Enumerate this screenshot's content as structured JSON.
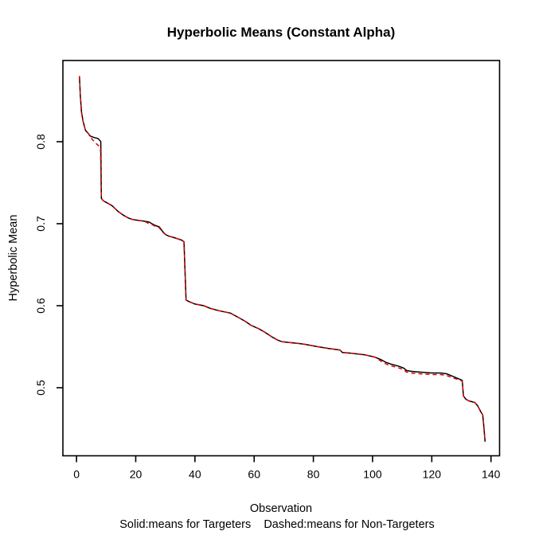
{
  "chart_data": {
    "type": "line",
    "title": "Hyperbolic Means (Constant Alpha)",
    "xlabel": "Observation",
    "ylabel": "Hyperbolic Mean",
    "caption": "Solid:means for Targeters    Dashed:means for Non-Targeters",
    "xlim": [
      -4.6,
      142.9
    ],
    "ylim": [
      0.417,
      0.899
    ],
    "x_ticks": [
      0,
      20,
      40,
      60,
      80,
      100,
      120,
      140
    ],
    "y_ticks": [
      "0.5",
      "0.6",
      "0.7",
      "0.8"
    ],
    "y_tick_values": [
      0.5,
      0.6,
      0.7,
      0.8
    ],
    "grid": false,
    "legend_position": "bottom-caption",
    "colors": {
      "solid_line": "#000000",
      "dashed_line": "#dd0000",
      "axis": "#000000",
      "background": "#ffffff"
    },
    "series": [
      {
        "name": "Targeters",
        "style": "solid",
        "color": "#000000",
        "points": [
          [
            1,
            0.88
          ],
          [
            1.3,
            0.856
          ],
          [
            1.7,
            0.836
          ],
          [
            2.2,
            0.825
          ],
          [
            3,
            0.814
          ],
          [
            4,
            0.81
          ],
          [
            4.6,
            0.807
          ],
          [
            6,
            0.805
          ],
          [
            7.2,
            0.804
          ],
          [
            8,
            0.801
          ],
          [
            8.2,
            0.8
          ],
          [
            8.4,
            0.731
          ],
          [
            9,
            0.728
          ],
          [
            10.5,
            0.725
          ],
          [
            12,
            0.722
          ],
          [
            14,
            0.715
          ],
          [
            16,
            0.71
          ],
          [
            17.5,
            0.707
          ],
          [
            19,
            0.705
          ],
          [
            21,
            0.704
          ],
          [
            23,
            0.703
          ],
          [
            24.5,
            0.702
          ],
          [
            25.5,
            0.7
          ],
          [
            26.5,
            0.698
          ],
          [
            28,
            0.696
          ],
          [
            29,
            0.691
          ],
          [
            30,
            0.687
          ],
          [
            31,
            0.685
          ],
          [
            33,
            0.683
          ],
          [
            35.5,
            0.68
          ],
          [
            36.3,
            0.678
          ],
          [
            37,
            0.607
          ],
          [
            38,
            0.605
          ],
          [
            40,
            0.602
          ],
          [
            43,
            0.6
          ],
          [
            45,
            0.597
          ],
          [
            48,
            0.594
          ],
          [
            52,
            0.591
          ],
          [
            55,
            0.585
          ],
          [
            57,
            0.581
          ],
          [
            59,
            0.576
          ],
          [
            61.5,
            0.572
          ],
          [
            63.5,
            0.568
          ],
          [
            66,
            0.562
          ],
          [
            68,
            0.558
          ],
          [
            69.5,
            0.556
          ],
          [
            72,
            0.555
          ],
          [
            75,
            0.554
          ],
          [
            77,
            0.553
          ],
          [
            81.5,
            0.55
          ],
          [
            85,
            0.548
          ],
          [
            87,
            0.547
          ],
          [
            89,
            0.546
          ],
          [
            89.8,
            0.543
          ],
          [
            93,
            0.542
          ],
          [
            97.5,
            0.54
          ],
          [
            100,
            0.538
          ],
          [
            101,
            0.537
          ],
          [
            103,
            0.534
          ],
          [
            104.5,
            0.531
          ],
          [
            106,
            0.529
          ],
          [
            109,
            0.526
          ],
          [
            110.5,
            0.524
          ],
          [
            111.5,
            0.521
          ],
          [
            113,
            0.52
          ],
          [
            116,
            0.519
          ],
          [
            120,
            0.518
          ],
          [
            123,
            0.518
          ],
          [
            125,
            0.517
          ],
          [
            127,
            0.514
          ],
          [
            129,
            0.511
          ],
          [
            130.3,
            0.509
          ],
          [
            130.7,
            0.49
          ],
          [
            131.5,
            0.486
          ],
          [
            132.5,
            0.484
          ],
          [
            134.5,
            0.482
          ],
          [
            135.5,
            0.478
          ],
          [
            136.5,
            0.471
          ],
          [
            137.2,
            0.467
          ],
          [
            137.6,
            0.452
          ],
          [
            138,
            0.434
          ]
        ]
      },
      {
        "name": "Non-Targeters",
        "style": "dashed",
        "color": "#dd0000",
        "points": [
          [
            1,
            0.88
          ],
          [
            1.3,
            0.856
          ],
          [
            1.7,
            0.836
          ],
          [
            2.2,
            0.825
          ],
          [
            3,
            0.814
          ],
          [
            4,
            0.81
          ],
          [
            4.6,
            0.806
          ],
          [
            5.5,
            0.802
          ],
          [
            6.5,
            0.798
          ],
          [
            7.5,
            0.795
          ],
          [
            8.1,
            0.791
          ],
          [
            8.4,
            0.731
          ],
          [
            9,
            0.728
          ],
          [
            10.5,
            0.725
          ],
          [
            12,
            0.722
          ],
          [
            14,
            0.715
          ],
          [
            16,
            0.71
          ],
          [
            17.5,
            0.707
          ],
          [
            19,
            0.705
          ],
          [
            21,
            0.704
          ],
          [
            23,
            0.703
          ],
          [
            24.5,
            0.7
          ],
          [
            25.5,
            0.699
          ],
          [
            26.5,
            0.697
          ],
          [
            28,
            0.695
          ],
          [
            29,
            0.69
          ],
          [
            30,
            0.687
          ],
          [
            31,
            0.685
          ],
          [
            33,
            0.683
          ],
          [
            35.5,
            0.68
          ],
          [
            36.3,
            0.678
          ],
          [
            37,
            0.607
          ],
          [
            38,
            0.605
          ],
          [
            40,
            0.602
          ],
          [
            43,
            0.6
          ],
          [
            45,
            0.597
          ],
          [
            48,
            0.594
          ],
          [
            52,
            0.591
          ],
          [
            55,
            0.585
          ],
          [
            57,
            0.581
          ],
          [
            59,
            0.576
          ],
          [
            61.5,
            0.572
          ],
          [
            63.5,
            0.568
          ],
          [
            66,
            0.562
          ],
          [
            68,
            0.558
          ],
          [
            69.5,
            0.556
          ],
          [
            72,
            0.555
          ],
          [
            75,
            0.554
          ],
          [
            77,
            0.553
          ],
          [
            81.5,
            0.55
          ],
          [
            85,
            0.548
          ],
          [
            87,
            0.547
          ],
          [
            89,
            0.546
          ],
          [
            89.8,
            0.543
          ],
          [
            93,
            0.542
          ],
          [
            97.5,
            0.54
          ],
          [
            100,
            0.538
          ],
          [
            101,
            0.537
          ],
          [
            103,
            0.532
          ],
          [
            104.5,
            0.529
          ],
          [
            106,
            0.527
          ],
          [
            109,
            0.524
          ],
          [
            110.5,
            0.522
          ],
          [
            111.5,
            0.519
          ],
          [
            113,
            0.518
          ],
          [
            116,
            0.517
          ],
          [
            120,
            0.516
          ],
          [
            123,
            0.516
          ],
          [
            125,
            0.515
          ],
          [
            127,
            0.512
          ],
          [
            129,
            0.51
          ],
          [
            130.3,
            0.508
          ],
          [
            130.7,
            0.49
          ],
          [
            131.5,
            0.486
          ],
          [
            132.5,
            0.484
          ],
          [
            134.5,
            0.482
          ],
          [
            135.5,
            0.478
          ],
          [
            136.5,
            0.471
          ],
          [
            137.2,
            0.467
          ],
          [
            137.6,
            0.452
          ],
          [
            138,
            0.434
          ]
        ]
      }
    ]
  }
}
